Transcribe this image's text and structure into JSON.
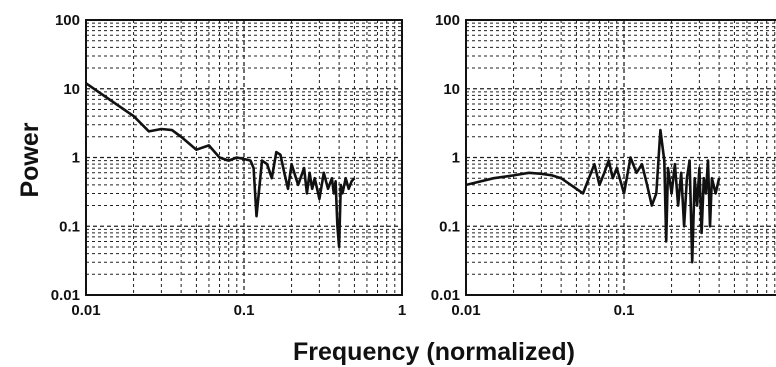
{
  "chart_data": {
    "ylabel": "Power",
    "xlabel": "Frequency (normalized)",
    "y_scale": "log",
    "x_scale": "log",
    "ylim": [
      0.01,
      100
    ],
    "xlim": [
      0.01,
      1
    ],
    "y_ticks": [
      "100",
      "10",
      "1",
      "0.1",
      "0.01"
    ],
    "grid": true,
    "panels": [
      {
        "type": "line",
        "x_ticks": [
          "0.01",
          "0.1",
          "1"
        ],
        "series": [
          {
            "x": [
              0.01,
              0.02,
              0.025,
              0.03,
              0.035,
              0.04,
              0.05,
              0.06,
              0.07,
              0.08,
              0.09,
              0.1,
              0.11,
              0.115,
              0.12,
              0.13,
              0.14,
              0.15,
              0.16,
              0.17,
              0.18,
              0.19,
              0.2,
              0.22,
              0.24,
              0.25,
              0.26,
              0.27,
              0.28,
              0.3,
              0.32,
              0.34,
              0.36,
              0.37,
              0.38,
              0.39,
              0.4,
              0.41,
              0.42,
              0.44,
              0.46,
              0.48,
              0.5
            ],
            "values": [
              12,
              4.0,
              2.4,
              2.6,
              2.5,
              2.0,
              1.3,
              1.5,
              1.0,
              0.9,
              1.0,
              0.95,
              0.9,
              0.7,
              0.14,
              0.9,
              0.8,
              0.5,
              1.2,
              1.1,
              0.6,
              0.35,
              0.8,
              0.4,
              0.7,
              0.3,
              0.6,
              0.35,
              0.5,
              0.25,
              0.6,
              0.35,
              0.5,
              0.3,
              0.45,
              0.1,
              0.05,
              0.4,
              0.3,
              0.5,
              0.35,
              0.45,
              0.5
            ]
          }
        ]
      },
      {
        "type": "line",
        "x_ticks": [
          "0.01",
          "0.1"
        ],
        "series": [
          {
            "x": [
              0.01,
              0.015,
              0.02,
              0.025,
              0.03,
              0.035,
              0.04,
              0.05,
              0.055,
              0.06,
              0.065,
              0.07,
              0.075,
              0.08,
              0.085,
              0.09,
              0.1,
              0.11,
              0.12,
              0.13,
              0.14,
              0.15,
              0.16,
              0.17,
              0.18,
              0.185,
              0.19,
              0.2,
              0.21,
              0.22,
              0.23,
              0.24,
              0.25,
              0.26,
              0.27,
              0.28,
              0.29,
              0.3,
              0.31,
              0.32,
              0.33,
              0.34,
              0.35,
              0.36,
              0.38,
              0.4
            ],
            "values": [
              0.4,
              0.5,
              0.55,
              0.6,
              0.58,
              0.55,
              0.5,
              0.35,
              0.3,
              0.5,
              0.8,
              0.4,
              0.6,
              0.9,
              0.5,
              0.7,
              0.3,
              1.0,
              0.6,
              0.8,
              0.4,
              0.2,
              0.3,
              2.5,
              0.9,
              0.06,
              0.7,
              0.3,
              0.8,
              0.2,
              0.6,
              0.1,
              0.5,
              0.9,
              0.03,
              0.5,
              0.2,
              0.7,
              0.08,
              0.5,
              0.3,
              0.9,
              0.1,
              0.5,
              0.3,
              0.5
            ]
          }
        ]
      }
    ]
  }
}
